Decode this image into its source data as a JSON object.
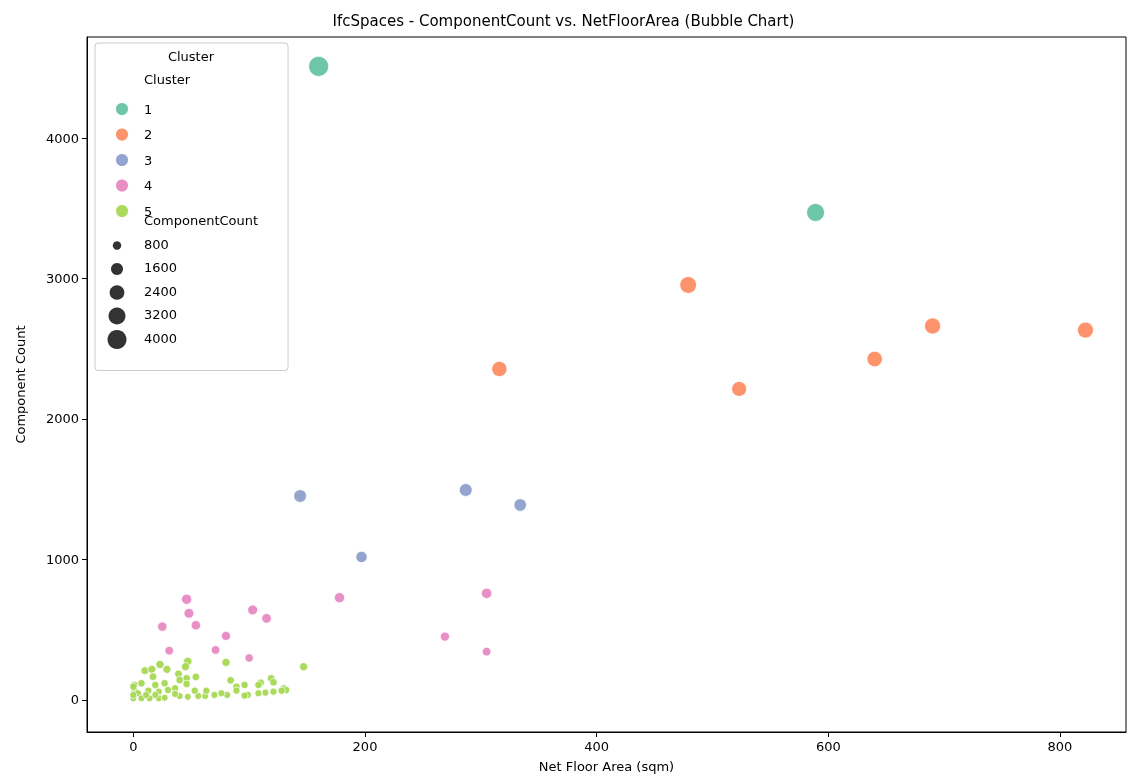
{
  "chart_data": {
    "type": "bubble",
    "title": "IfcSpaces - ComponentCount vs. NetFloorArea (Bubble Chart)",
    "xlabel": "Net Floor Area (sqm)",
    "ylabel": "Component Count",
    "legend_title": "Cluster",
    "annotations": [
      "Cluster",
      "ComponentCount"
    ],
    "xlim": [
      -40,
      857
    ],
    "ylim": [
      -228,
      4719
    ],
    "xticks": [
      0,
      200,
      400,
      600,
      800
    ],
    "yticks": [
      0,
      1000,
      2000,
      3000,
      4000
    ],
    "grid": false,
    "legend": "top left",
    "marker": "circle",
    "size_legend": [
      800,
      1600,
      2400,
      3200,
      4000
    ],
    "series": [
      {
        "name": "1",
        "color": "#66c2a5",
        "x": [
          160,
          589
        ],
        "values": [
          4510,
          3470
        ],
        "sizes": [
          4450,
          3540
        ]
      },
      {
        "name": "2",
        "color": "#fc8d62",
        "x": [
          479,
          316,
          523,
          640,
          690,
          822
        ],
        "values": [
          2954,
          2356,
          2214,
          2427,
          2662,
          2633
        ],
        "sizes": [
          3090,
          2570,
          2450,
          2630,
          2840,
          2810
        ]
      },
      {
        "name": "3",
        "color": "#8da0cb",
        "x": [
          144,
          287,
          334,
          197
        ],
        "values": [
          1452,
          1495,
          1388,
          1018
        ],
        "sizes": [
          1780,
          1820,
          1730,
          1410
        ]
      },
      {
        "name": "4",
        "color": "#e78ac3",
        "x": [
          46,
          48,
          54,
          25,
          31,
          80,
          71,
          103,
          115,
          100,
          178,
          269,
          305,
          305
        ],
        "values": [
          717,
          617,
          532,
          522,
          351,
          456,
          356,
          641,
          581,
          299,
          728,
          451,
          759,
          344
        ],
        "sizes": [
          1140,
          1060,
          980,
          970,
          820,
          920,
          830,
          1080,
          1020,
          780,
          1150,
          910,
          1180,
          820
        ]
      },
      {
        "name": "5",
        "color": "#a6d854",
        "x": [
          147,
          80,
          47,
          45,
          23,
          29,
          10,
          16,
          54,
          39,
          46,
          17,
          84,
          89,
          96,
          119,
          121,
          110,
          108,
          130,
          132,
          128,
          121,
          114,
          108,
          99,
          96,
          89,
          81,
          76,
          70,
          62,
          56,
          47,
          40,
          46,
          40,
          27,
          19,
          7,
          1,
          1,
          4,
          13,
          22,
          30,
          36,
          53,
          63,
          0,
          7,
          14,
          22,
          27,
          0,
          11,
          19,
          36,
          0
        ],
        "values": [
          237,
          268,
          275,
          237,
          253,
          218,
          209,
          218,
          164,
          185,
          154,
          166,
          140,
          95,
          107,
          154,
          126,
          123,
          107,
          83,
          71,
          66,
          59,
          52,
          48,
          36,
          31,
          66,
          36,
          48,
          36,
          28,
          28,
          23,
          28,
          114,
          142,
          119,
          107,
          119,
          107,
          71,
          48,
          66,
          59,
          71,
          83,
          66,
          66,
          12,
          12,
          12,
          12,
          16,
          36,
          36,
          36,
          43,
          95
        ],
        "sizes": [
          720,
          750,
          760,
          720,
          740,
          710,
          700,
          710,
          660,
          680,
          650,
          660,
          640,
          600,
          610,
          650,
          630,
          630,
          610,
          590,
          580,
          580,
          570,
          560,
          560,
          550,
          550,
          580,
          550,
          560,
          550,
          540,
          540,
          540,
          540,
          620,
          640,
          620,
          610,
          620,
          610,
          580,
          560,
          580,
          570,
          580,
          590,
          580,
          580,
          530,
          530,
          530,
          530,
          530,
          550,
          550,
          550,
          560,
          600
        ]
      }
    ]
  }
}
